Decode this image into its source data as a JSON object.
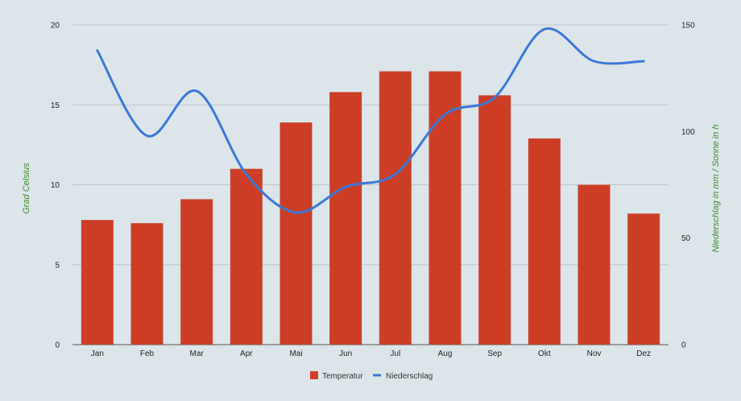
{
  "chart_data": {
    "type": "bar",
    "categories": [
      "Jan",
      "Feb",
      "Mar",
      "Apr",
      "Mai",
      "Jun",
      "Jul",
      "Aug",
      "Sep",
      "Okt",
      "Nov",
      "Dez"
    ],
    "series": [
      {
        "name": "Temperatur",
        "type": "bar",
        "axis": "left",
        "color": "#cc3f26",
        "values": [
          7.8,
          7.6,
          9.1,
          11.0,
          13.9,
          15.8,
          17.1,
          17.1,
          15.6,
          12.9,
          10.0,
          8.2
        ]
      },
      {
        "name": "Niederschlag",
        "type": "line",
        "axis": "right",
        "color": "#3b78d8",
        "values": [
          138,
          98,
          119,
          80,
          62,
          74,
          80,
          108,
          116,
          148,
          133,
          133
        ]
      }
    ],
    "ylabel_left": "Grad Celsius",
    "ylabel_right": "Niederschlag in mm / Sonne in h",
    "ylim_left": [
      0,
      20
    ],
    "yticks_left": [
      "0",
      "5",
      "10",
      "15",
      "20"
    ],
    "ylim_right": [
      0,
      150
    ],
    "yticks_right": [
      "0",
      "50",
      "100",
      "150"
    ],
    "grid": true,
    "legend_position": "bottom",
    "colors": {
      "background": "#dce6ea",
      "grid": "#bcc6ca",
      "axis_title": "#3c8a2e"
    }
  }
}
